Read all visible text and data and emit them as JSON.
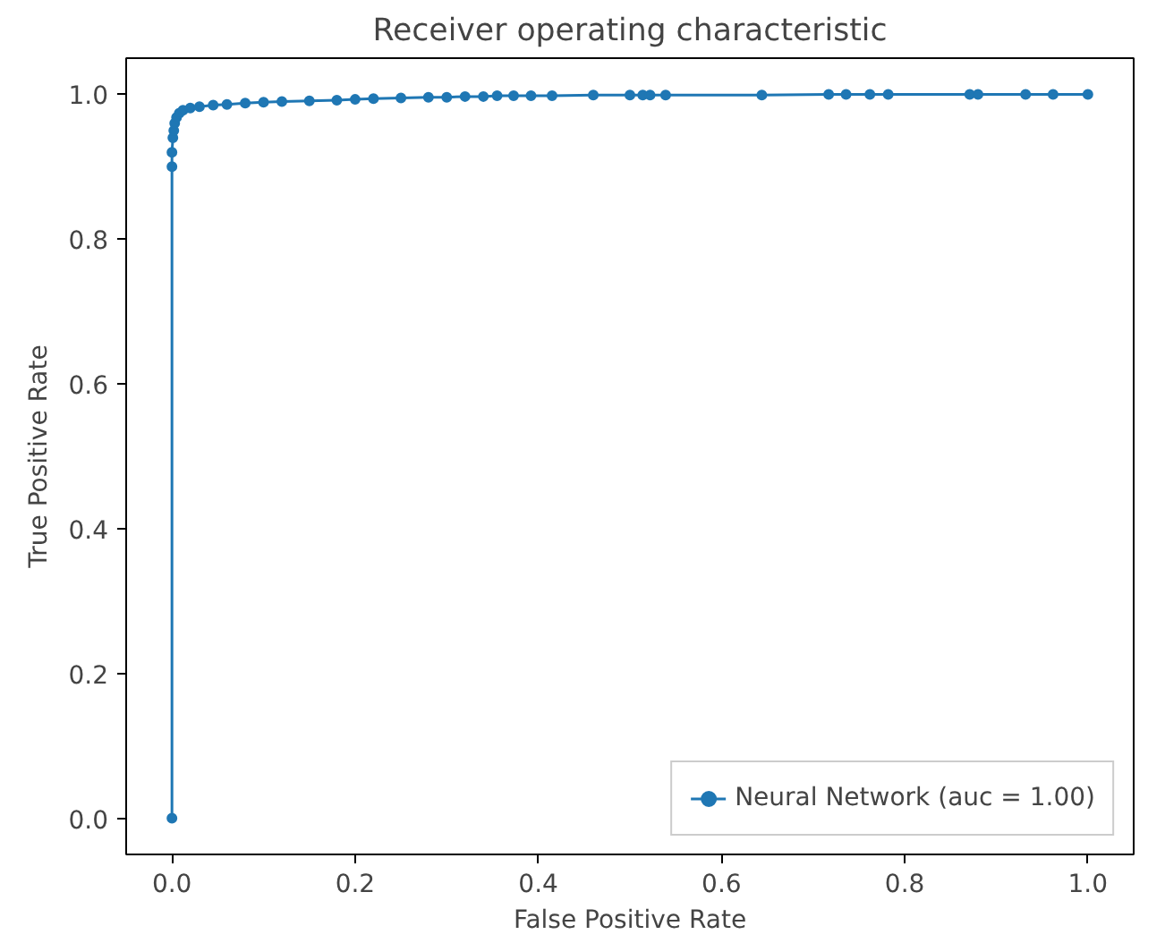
{
  "chart_data": {
    "type": "line",
    "title": "Receiver operating characteristic",
    "xlabel": "False Positive Rate",
    "ylabel": "True Positive Rate",
    "xlim": [
      -0.05,
      1.05
    ],
    "ylim": [
      -0.05,
      1.05
    ],
    "xticks": [
      {
        "value": 0,
        "label": "0.0"
      },
      0.2,
      0.4,
      0.6,
      0.8,
      {
        "value": 1,
        "label": "1.0"
      }
    ],
    "yticks": [
      {
        "value": 0,
        "label": "0.0"
      },
      0.2,
      0.4,
      0.6,
      0.8,
      {
        "value": 1,
        "label": "1.0"
      }
    ],
    "grid": false,
    "legend": "bottom right",
    "marker": "circle",
    "line_style": "solid",
    "series": [
      {
        "name": "Neural Network (auc = 1.00)",
        "color": "#1f77b4",
        "x": [
          0,
          0,
          0,
          0.001,
          0.002,
          0.003,
          0.005,
          0.008,
          0.012,
          0.02,
          0.03,
          0.045,
          0.06,
          0.08,
          0.1,
          0.12,
          0.15,
          0.18,
          0.2,
          0.22,
          0.25,
          0.28,
          0.3,
          0.32,
          0.34,
          0.355,
          0.373,
          0.392,
          0.415,
          0.46,
          0.5,
          0.514,
          0.522,
          0.539,
          0.644,
          0.717,
          0.736,
          0.762,
          0.782,
          0.871,
          0.88,
          0.932,
          0.962,
          1.0
        ],
        "values": [
          0,
          0.9,
          0.92,
          0.94,
          0.95,
          0.96,
          0.968,
          0.974,
          0.978,
          0.981,
          0.983,
          0.985,
          0.986,
          0.988,
          0.989,
          0.99,
          0.991,
          0.992,
          0.993,
          0.994,
          0.995,
          0.996,
          0.996,
          0.997,
          0.997,
          0.998,
          0.998,
          0.998,
          0.998,
          0.999,
          0.999,
          0.999,
          0.999,
          0.999,
          0.999,
          1.0,
          1.0,
          1.0,
          1.0,
          1.0,
          1.0,
          1.0,
          1.0,
          1.0
        ]
      }
    ]
  }
}
